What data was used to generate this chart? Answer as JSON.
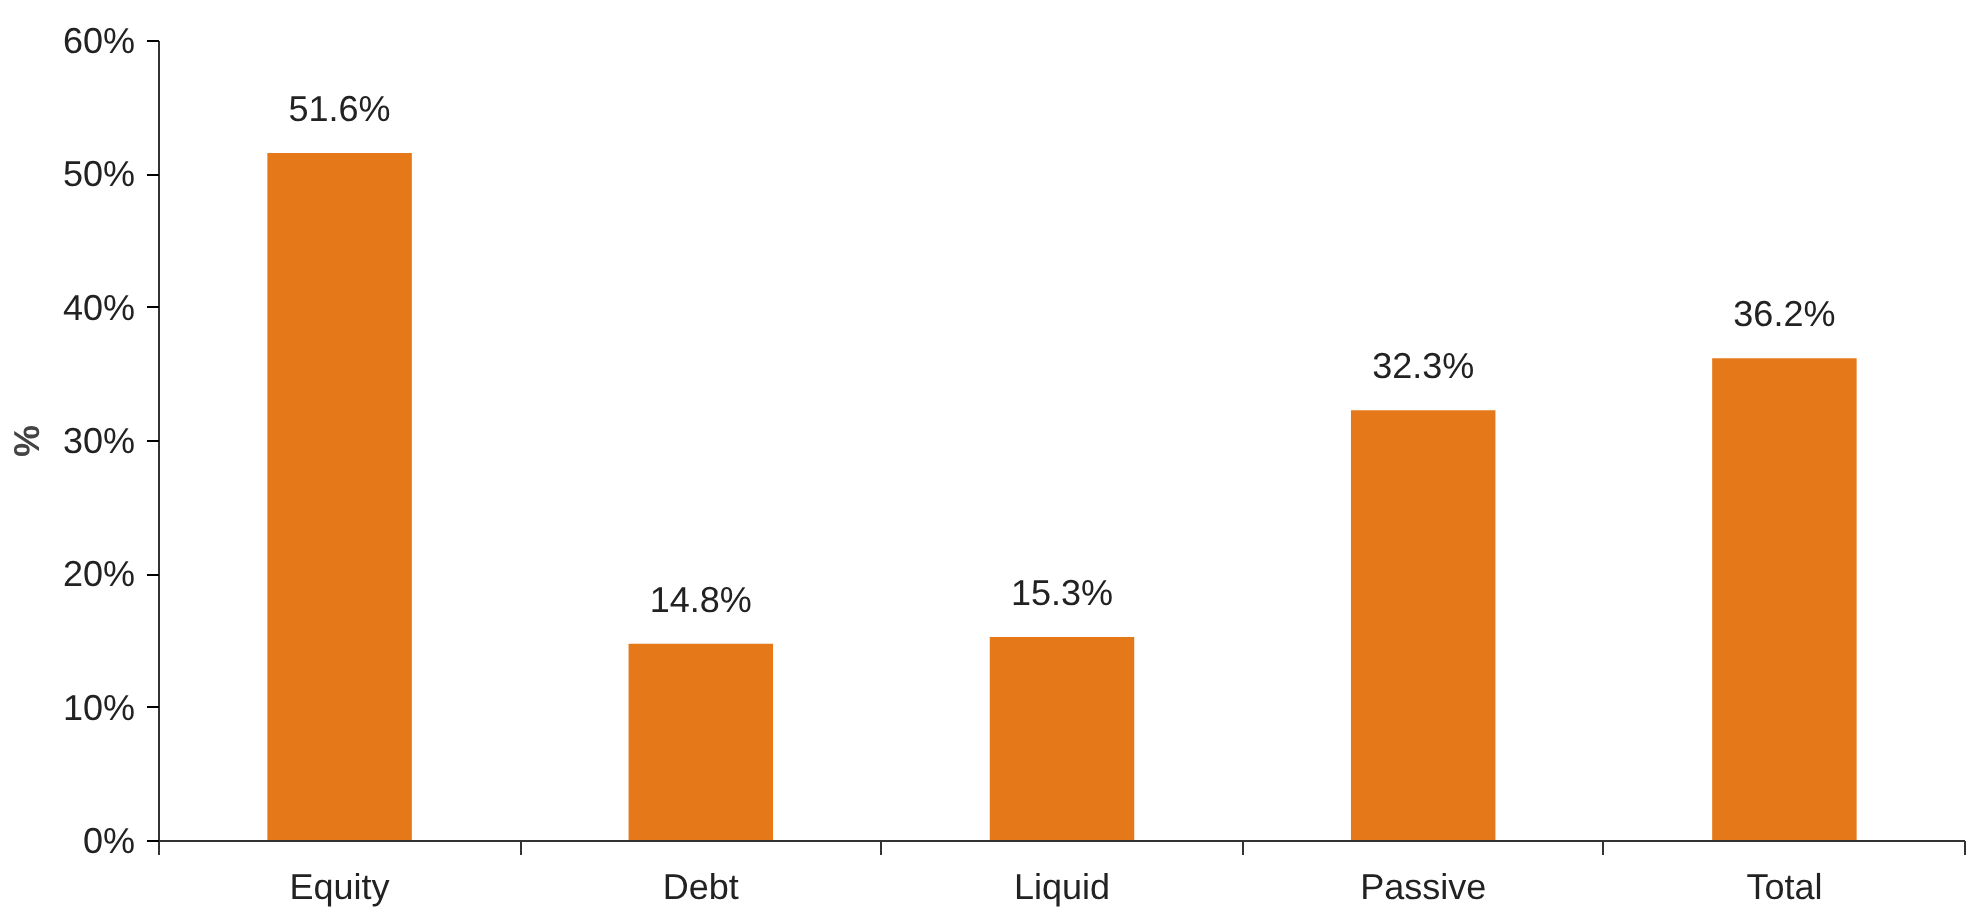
{
  "chart_data": {
    "type": "bar",
    "ylabel": "%",
    "categories": [
      "Equity",
      "Debt",
      "Liquid",
      "Passive",
      "Total"
    ],
    "values": [
      51.6,
      14.8,
      15.3,
      32.3,
      36.2
    ],
    "value_labels": [
      "51.6%",
      "14.8%",
      "15.3%",
      "32.3%",
      "36.2%"
    ],
    "color": "#e5791a",
    "ylim": [
      0,
      60
    ],
    "yticks": [
      {
        "value": 0,
        "label": "0%"
      },
      {
        "value": 10,
        "label": "10%"
      },
      {
        "value": 20,
        "label": "20%"
      },
      {
        "value": 30,
        "label": "30%"
      },
      {
        "value": 40,
        "label": "40%"
      },
      {
        "value": 50,
        "label": "50%"
      },
      {
        "value": 60,
        "label": "60%"
      }
    ],
    "grid": false
  }
}
